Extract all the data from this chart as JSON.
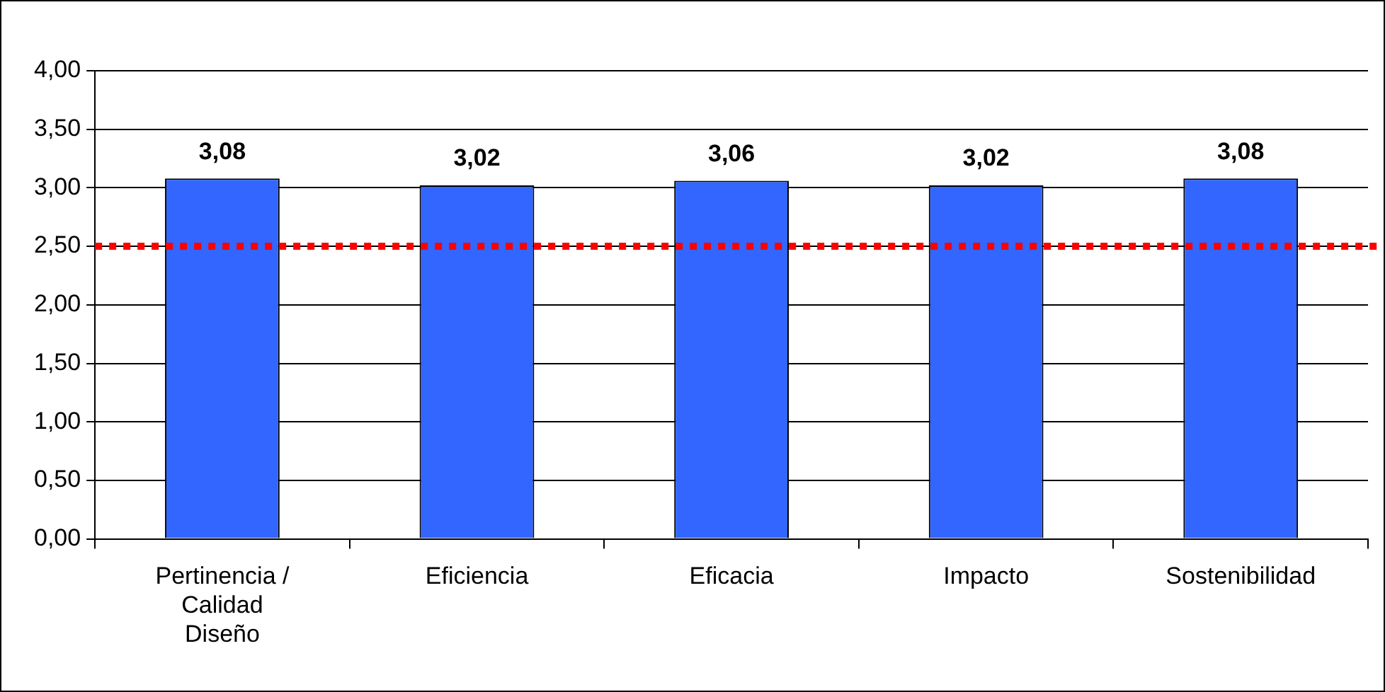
{
  "chart_data": {
    "type": "bar",
    "categories": [
      "Pertinencia / Calidad Diseño",
      "Eficiencia",
      "Eficacia",
      "Impacto",
      "Sostenibilidad"
    ],
    "values": [
      3.08,
      3.02,
      3.06,
      3.02,
      3.08
    ],
    "value_labels": [
      "3,08",
      "3,02",
      "3,06",
      "3,02",
      "3,08"
    ],
    "color": "#3366ff",
    "ylim": [
      0,
      4
    ],
    "yticks": [
      {
        "value": 0,
        "label": "0,00"
      },
      {
        "value": 0.5,
        "label": "0,50"
      },
      {
        "value": 1,
        "label": "1,00"
      },
      {
        "value": 1.5,
        "label": "1,50"
      },
      {
        "value": 2,
        "label": "2,00"
      },
      {
        "value": 2.5,
        "label": "2,50"
      },
      {
        "value": 3,
        "label": "3,00"
      },
      {
        "value": 3.5,
        "label": "3,50"
      },
      {
        "value": 4,
        "label": "4,00"
      }
    ],
    "ref_lines": [
      {
        "axis": "y",
        "value": 2.5,
        "color": "#ff0000",
        "line_style": "dotted"
      }
    ],
    "grid": "y",
    "legend": false
  }
}
